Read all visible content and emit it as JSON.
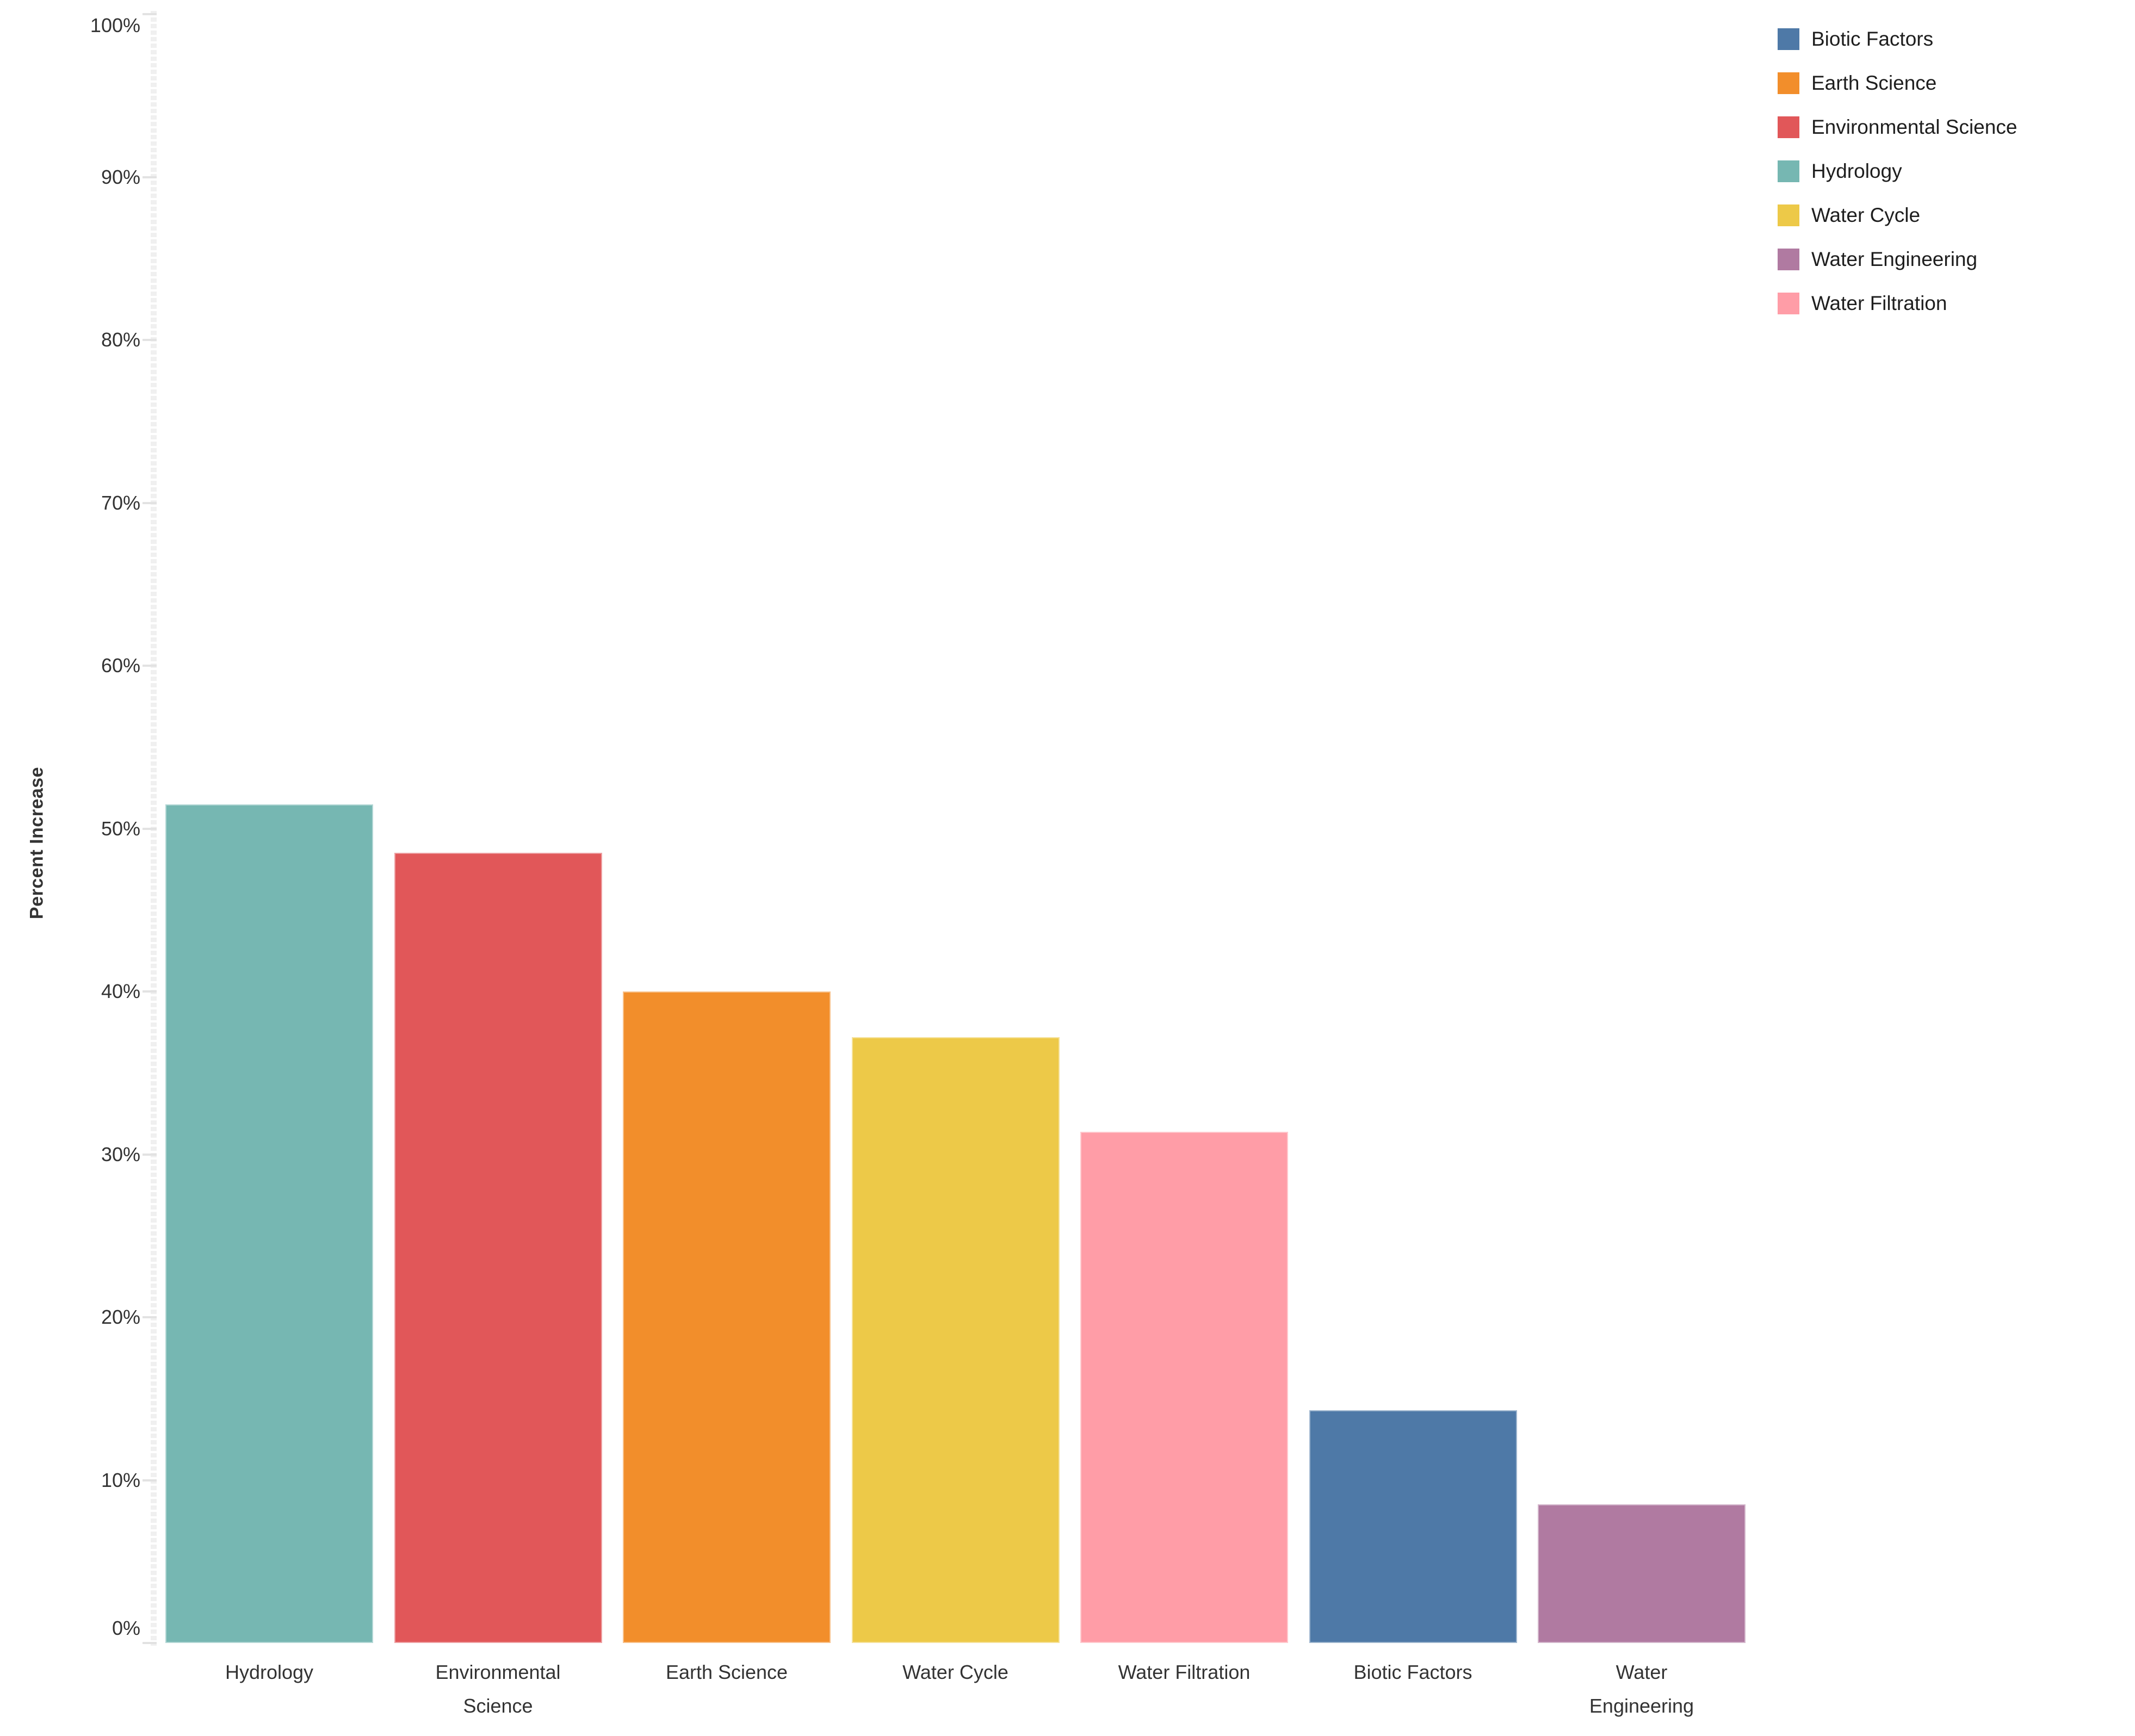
{
  "chart_data": {
    "type": "bar",
    "title": "",
    "xlabel": "",
    "ylabel": "Percent Increase",
    "ylim": [
      0,
      100
    ],
    "grid": false,
    "legend_position": "top-right",
    "y_axis": {
      "title": "Percent Increase",
      "tick_labels": [
        "0%",
        "10%",
        "20%",
        "30%",
        "40%",
        "50%",
        "60%",
        "70%",
        "80%",
        "90%",
        "100%"
      ]
    },
    "categories": [
      "Hydrology",
      "Environmental Science",
      "Earth Science",
      "Water Cycle",
      "Water Filtration",
      "Biotic Factors",
      "Water Engineering"
    ],
    "values": [
      51.5,
      48.5,
      40,
      37.2,
      31.4,
      14.3,
      8.5
    ],
    "bars": [
      {
        "name": "Hydrology",
        "label": "Hydrology",
        "value": 51.5,
        "color": "#76b7b2"
      },
      {
        "name": "Environmental Science",
        "label": "Environmental\nScience",
        "value": 48.5,
        "color": "#e15759"
      },
      {
        "name": "Earth Science",
        "label": "Earth Science",
        "value": 40,
        "color": "#f28e2b"
      },
      {
        "name": "Water Cycle",
        "label": "Water Cycle",
        "value": 37.2,
        "color": "#edc948"
      },
      {
        "name": "Water Filtration",
        "label": "Water Filtration",
        "value": 31.4,
        "color": "#ff9da7"
      },
      {
        "name": "Biotic Factors",
        "label": "Biotic Factors",
        "value": 14.3,
        "color": "#4e79a7"
      },
      {
        "name": "Water Engineering",
        "label": "Water\nEngineering",
        "value": 8.5,
        "color": "#b07aa1"
      }
    ],
    "legend": {
      "items": [
        {
          "label": "Biotic Factors",
          "color": "#4e79a7"
        },
        {
          "label": "Earth Science",
          "color": "#f28e2b"
        },
        {
          "label": "Environmental Science",
          "color": "#e15759"
        },
        {
          "label": "Hydrology",
          "color": "#76b7b2"
        },
        {
          "label": "Water Cycle",
          "color": "#edc948"
        },
        {
          "label": "Water Engineering",
          "color": "#b07aa1"
        },
        {
          "label": "Water Filtration",
          "color": "#ff9da7"
        }
      ]
    }
  }
}
